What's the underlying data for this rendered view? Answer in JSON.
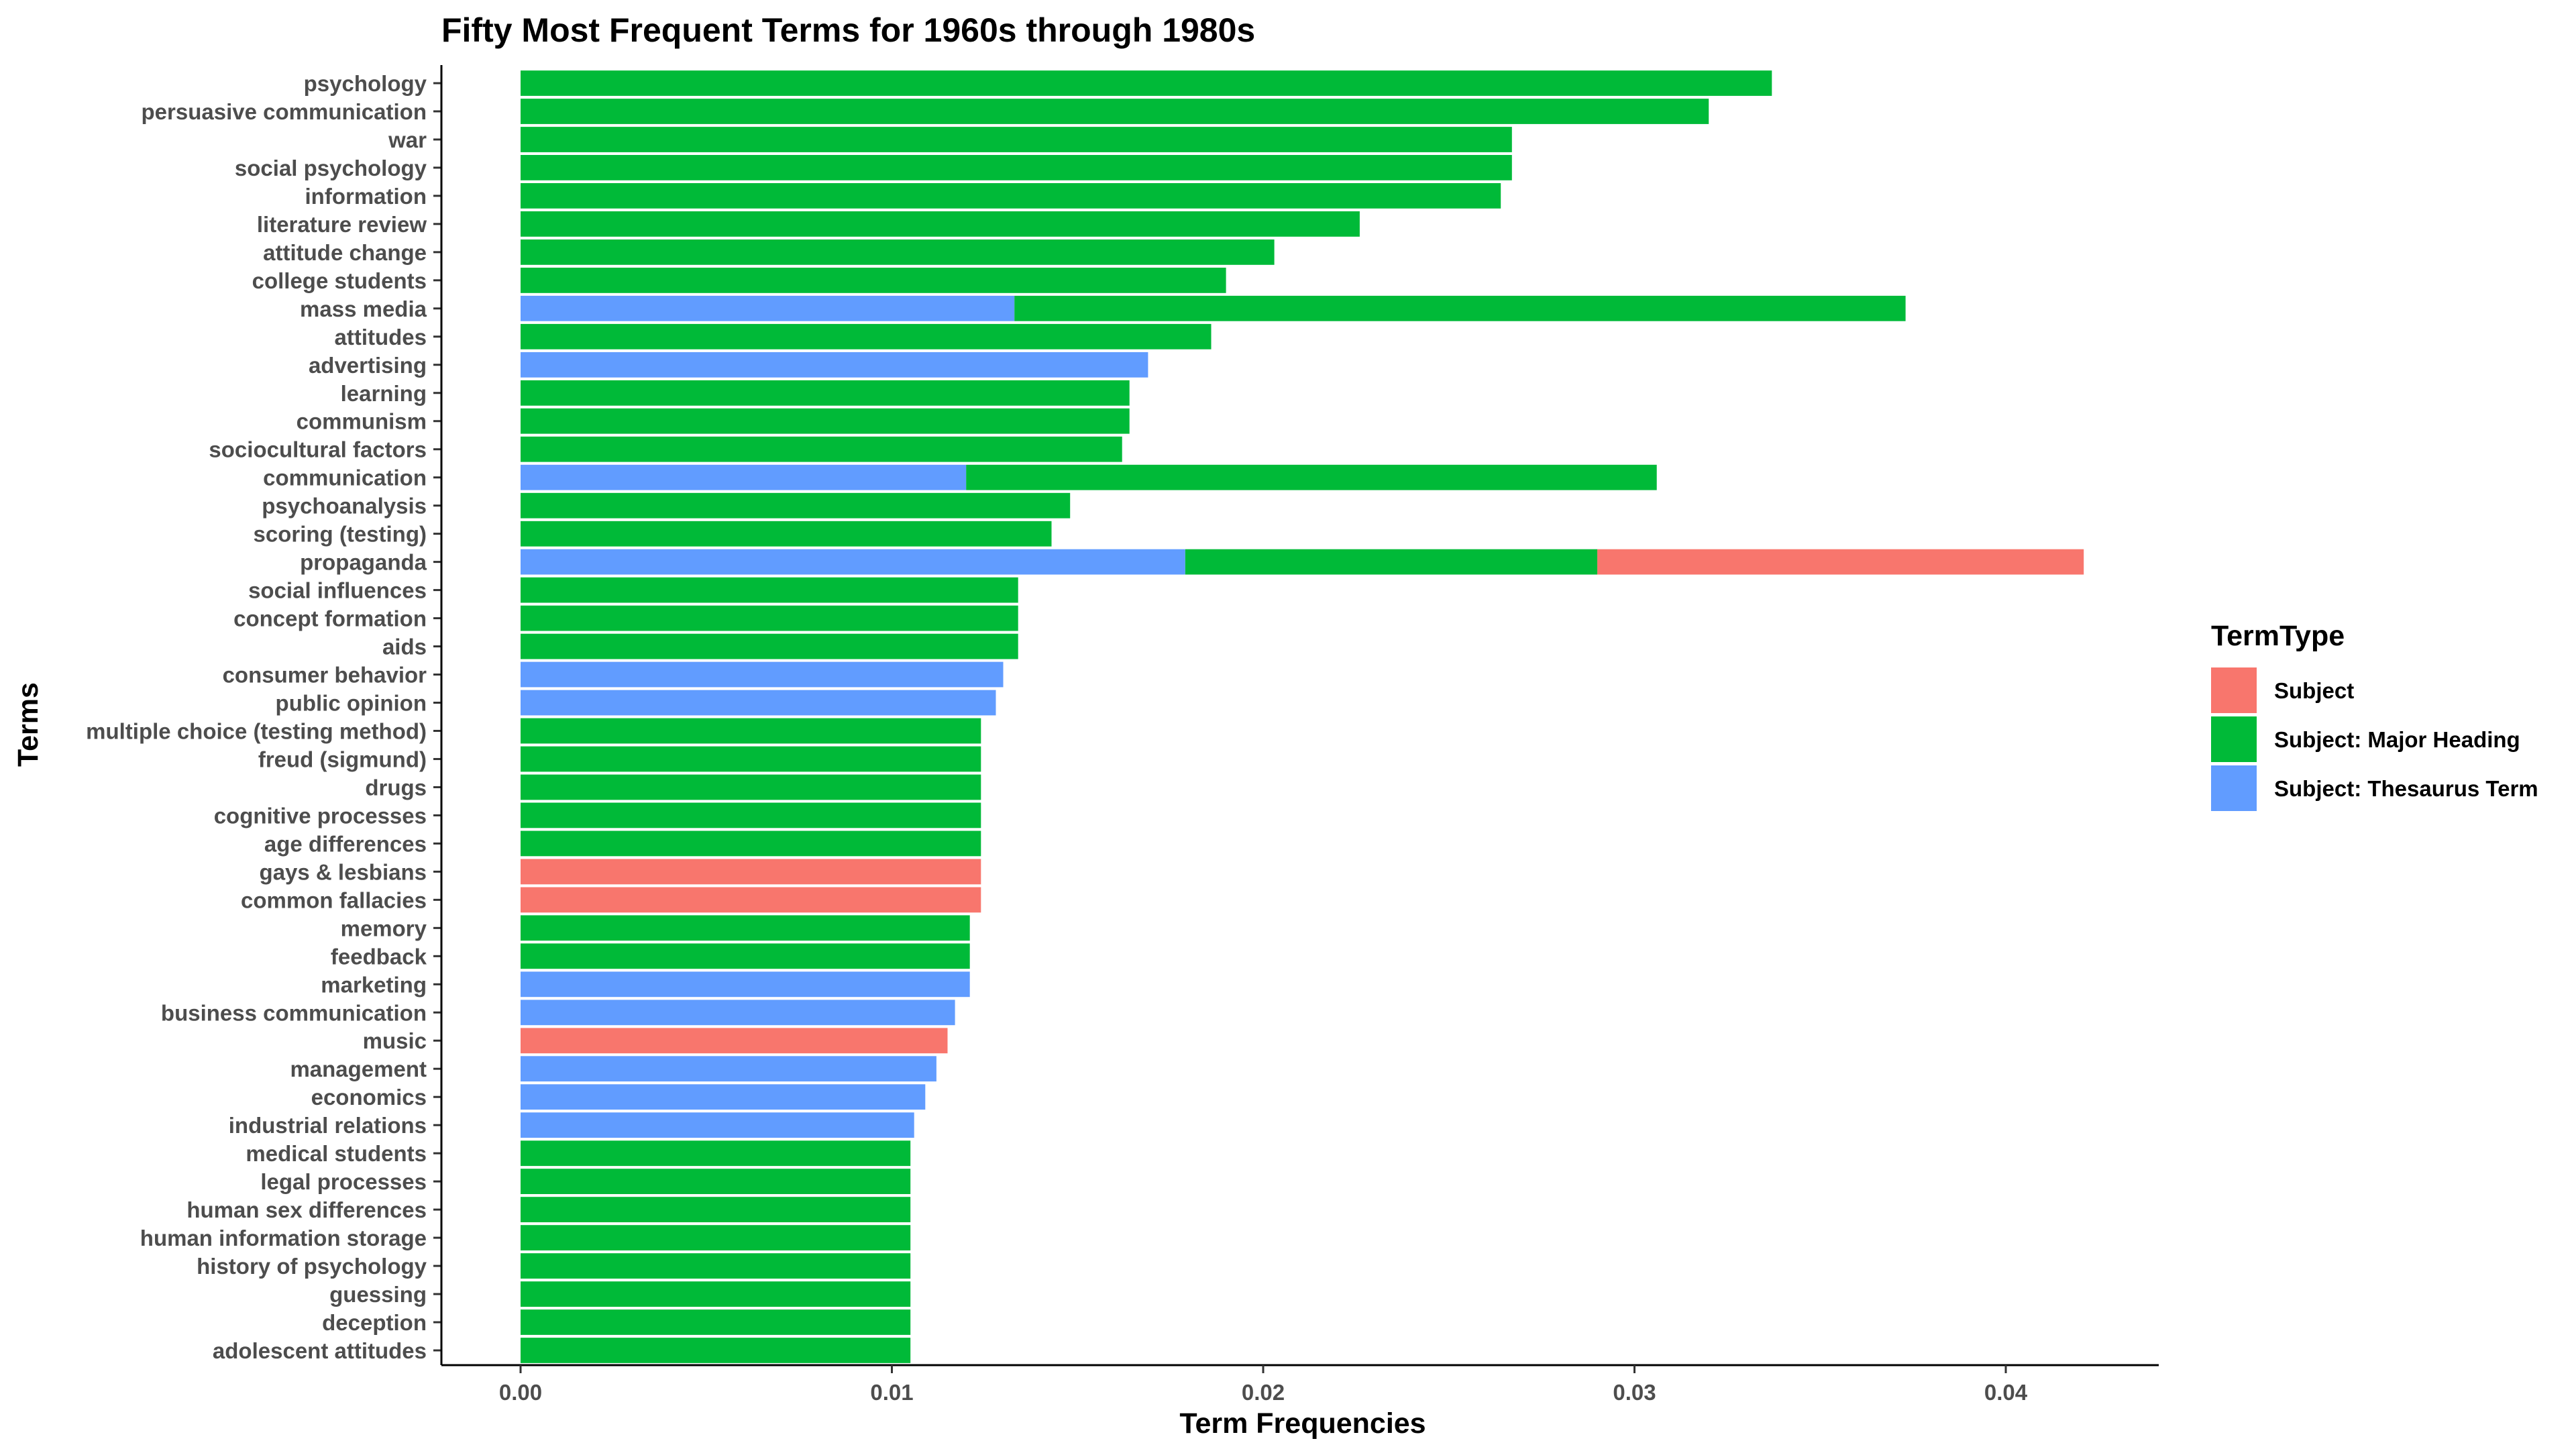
{
  "chart_data": {
    "type": "bar",
    "orientation": "horizontal",
    "stacked": true,
    "title": "Fifty Most Frequent Terms for 1960s through 1980s",
    "xlabel": "Term Frequencies",
    "ylabel": "Terms",
    "xlim": [
      0,
      0.044
    ],
    "xticks": [
      "0.00",
      "0.01",
      "0.02",
      "0.03",
      "0.04"
    ],
    "xtick_values": [
      0,
      0.01,
      0.02,
      0.03,
      0.04
    ],
    "grid": false,
    "legend_position": "right",
    "legend_title": "TermType",
    "categories": [
      "psychology",
      "persuasive communication",
      "war",
      "social psychology",
      "information",
      "literature review",
      "attitude change",
      "college students",
      "mass media",
      "attitudes",
      "advertising",
      "learning",
      "communism",
      "sociocultural factors",
      "communication",
      "psychoanalysis",
      "scoring (testing)",
      "propaganda",
      "social influences",
      "concept formation",
      "aids",
      "consumer behavior",
      "public opinion",
      "multiple choice (testing method)",
      "freud (sigmund)",
      "drugs",
      "cognitive processes",
      "age differences",
      "gays & lesbians",
      "common fallacies",
      "memory",
      "feedback",
      "marketing",
      "business communication",
      "music",
      "management",
      "economics",
      "industrial relations",
      "medical students",
      "legal processes",
      "human sex differences",
      "human information storage",
      "history of psychology",
      "guessing",
      "deception",
      "adolescent attitudes"
    ],
    "series": [
      {
        "name": "Subject: Thesaurus Term",
        "color": "#619CFF",
        "values": [
          0,
          0,
          0,
          0,
          0,
          0,
          0,
          0,
          0.0133,
          0,
          0.0169,
          0,
          0,
          0,
          0.012,
          0,
          0,
          0.0179,
          0,
          0,
          0,
          0.013,
          0.0128,
          0,
          0,
          0,
          0,
          0,
          0,
          0,
          0,
          0,
          0.0121,
          0.0117,
          0,
          0.0112,
          0.0109,
          0.0106,
          0,
          0,
          0,
          0,
          0,
          0,
          0,
          0
        ]
      },
      {
        "name": "Subject: Major Heading",
        "color": "#00BA38",
        "values": [
          0.0337,
          0.032,
          0.0267,
          0.0267,
          0.0264,
          0.0226,
          0.0203,
          0.019,
          0.024,
          0.0186,
          0,
          0.0164,
          0.0164,
          0.0162,
          0.0186,
          0.0148,
          0.0143,
          0.0111,
          0.0134,
          0.0134,
          0.0134,
          0,
          0,
          0.0124,
          0.0124,
          0.0124,
          0.0124,
          0.0124,
          0,
          0,
          0.0121,
          0.0121,
          0,
          0,
          0,
          0,
          0,
          0,
          0.0105,
          0.0105,
          0.0105,
          0.0105,
          0.0105,
          0.0105,
          0.0105,
          0.0105
        ]
      },
      {
        "name": "Subject",
        "color": "#F8766D",
        "values": [
          0,
          0,
          0,
          0,
          0,
          0,
          0,
          0,
          0,
          0,
          0,
          0,
          0,
          0,
          0,
          0,
          0,
          0.0131,
          0,
          0,
          0,
          0,
          0,
          0,
          0,
          0,
          0,
          0,
          0.0124,
          0.0124,
          0,
          0,
          0,
          0,
          0.0115,
          0,
          0,
          0,
          0,
          0,
          0,
          0,
          0,
          0,
          0,
          0
        ]
      }
    ],
    "legend_entries": [
      {
        "label": "Subject",
        "color": "#F8766D"
      },
      {
        "label": "Subject: Major Heading",
        "color": "#00BA38"
      },
      {
        "label": "Subject: Thesaurus Term",
        "color": "#619CFF"
      }
    ]
  }
}
